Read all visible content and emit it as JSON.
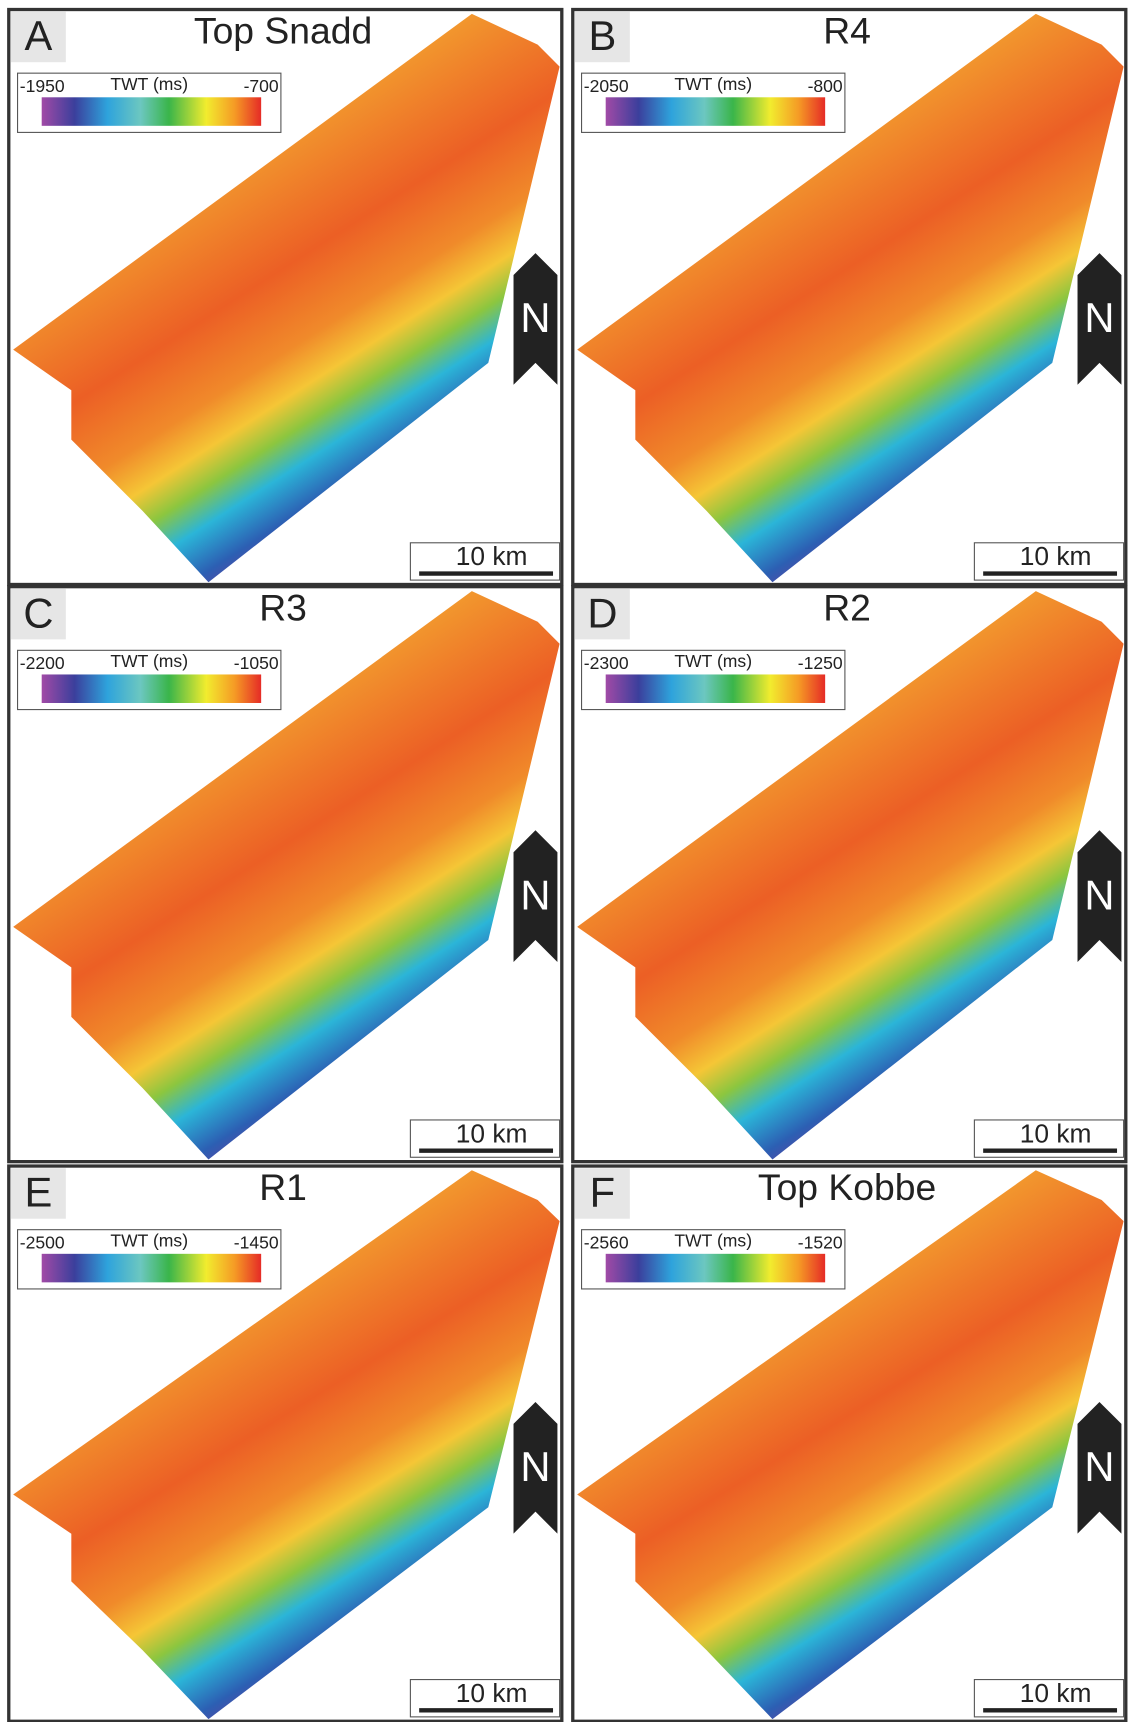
{
  "panels": [
    {
      "letter": "A",
      "title": "Top Snadd",
      "legend": {
        "min": -1950,
        "label": "TWT (ms)",
        "max": -700
      },
      "north": "N",
      "scale": "10 km"
    },
    {
      "letter": "B",
      "title": "R4",
      "legend": {
        "min": -2050,
        "label": "TWT (ms)",
        "max": -800
      },
      "north": "N",
      "scale": "10 km"
    },
    {
      "letter": "C",
      "title": "R3",
      "legend": {
        "min": -2200,
        "label": "TWT (ms)",
        "max": -1050
      },
      "north": "N",
      "scale": "10 km"
    },
    {
      "letter": "D",
      "title": "R2",
      "legend": {
        "min": -2300,
        "label": "TWT (ms)",
        "max": -1250
      },
      "north": "N",
      "scale": "10 km"
    },
    {
      "letter": "E",
      "title": "R1",
      "legend": {
        "min": -2500,
        "label": "TWT (ms)",
        "max": -1450
      },
      "north": "N",
      "scale": "10 km"
    },
    {
      "letter": "F",
      "title": "Top Kobbe",
      "legend": {
        "min": -2560,
        "label": "TWT (ms)",
        "max": -1520
      },
      "north": "N",
      "scale": "10 km"
    }
  ]
}
